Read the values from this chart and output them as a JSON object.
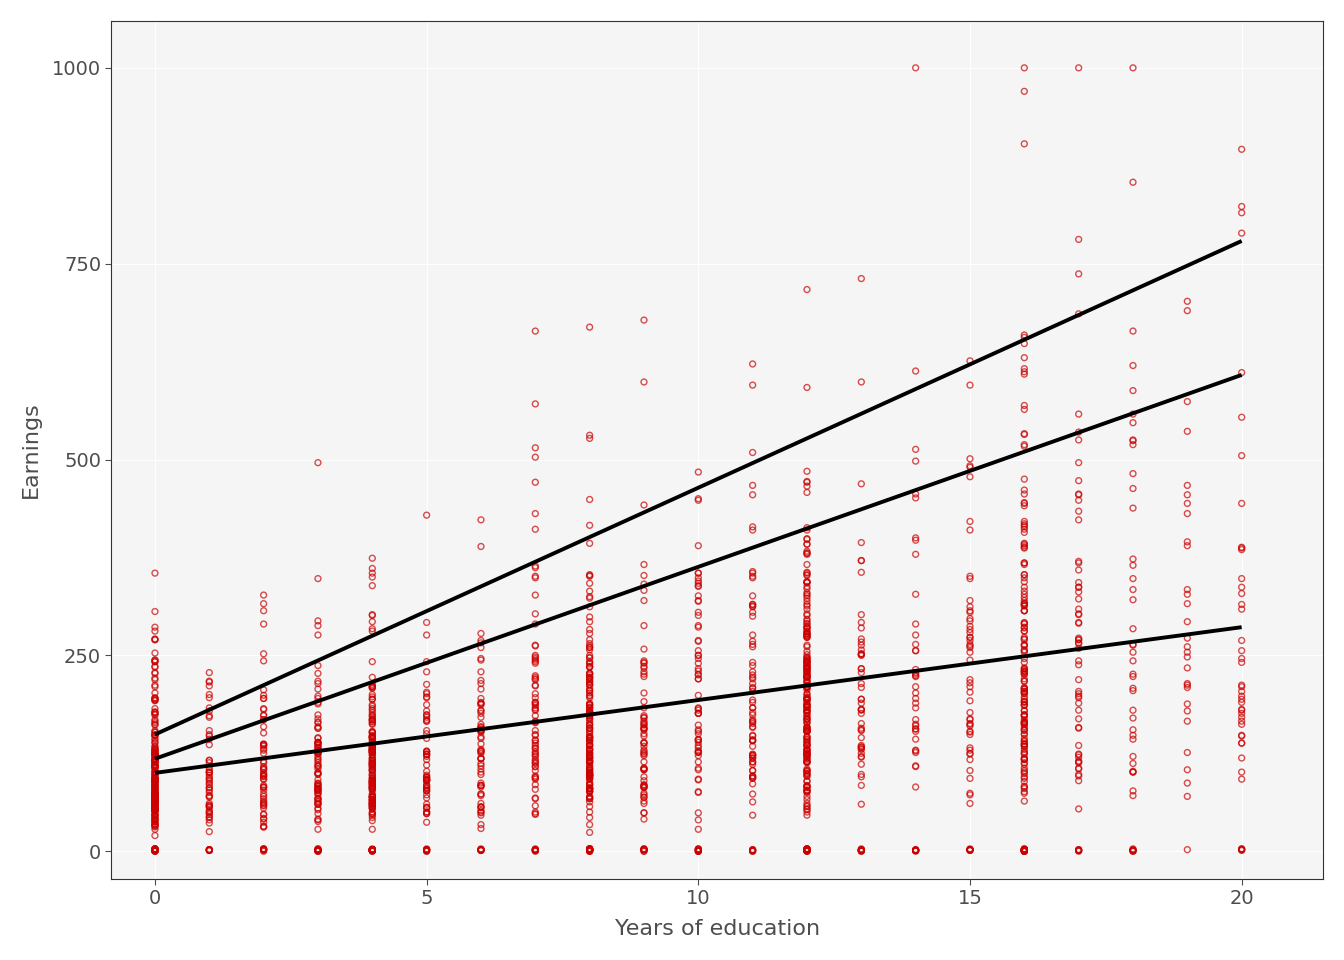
{
  "title": "",
  "xlabel": "Years of education",
  "ylabel": "Earnings",
  "xlim": [
    -0.8,
    21.5
  ],
  "ylim": [
    -35,
    1060
  ],
  "xticks": [
    0,
    5,
    10,
    15,
    20
  ],
  "yticks": [
    0,
    250,
    500,
    750,
    1000
  ],
  "background_color": "#ffffff",
  "panel_background": "#f5f5f5",
  "grid_color": "#ffffff",
  "scatter_color": "#cc0000",
  "scatter_facecolor": "none",
  "scatter_size": 18,
  "scatter_linewidth": 1.0,
  "scatter_alpha": 0.7,
  "line_color": "#000000",
  "line_width": 2.8,
  "tick_label_color": "#4d4d4d",
  "axis_label_color": "#4d4d4d",
  "tick_label_size": 14,
  "axis_label_size": 16,
  "lines": [
    {
      "intercept": 149,
      "slope": 31.5
    },
    {
      "intercept": 118,
      "slope": 24.5
    },
    {
      "intercept": 100,
      "slope": 9.3
    }
  ],
  "seed": 123,
  "n_points": 2000
}
